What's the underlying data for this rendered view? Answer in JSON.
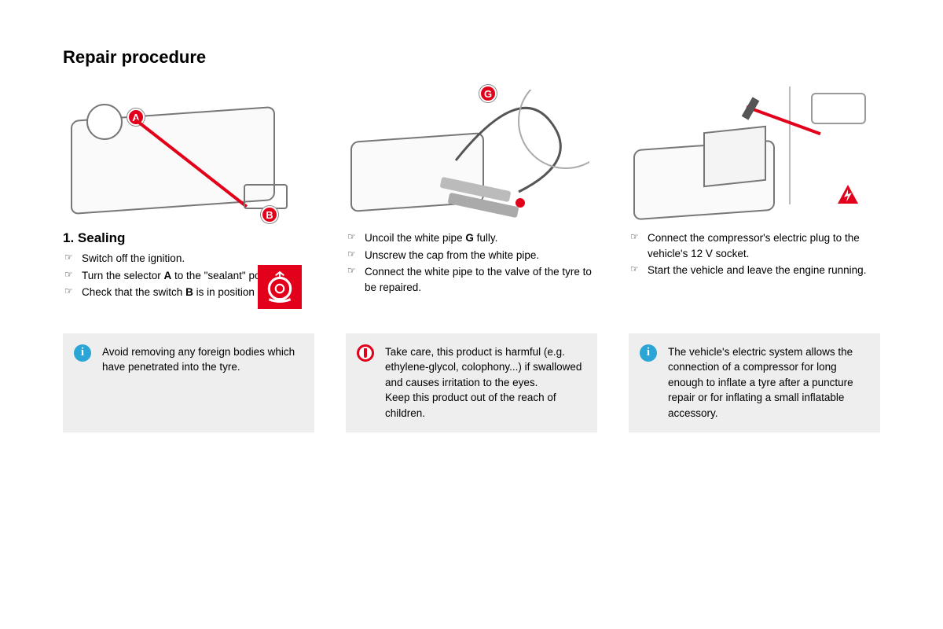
{
  "title": "Repair procedure",
  "col1": {
    "heading": "1. Sealing",
    "steps": [
      "Switch off the ignition.",
      "Turn the selector A to the \"sealant\" position.",
      "Check that the switch B is in position \"O\"."
    ],
    "markers": {
      "a": "A",
      "b": "B"
    }
  },
  "col2": {
    "steps": [
      "Uncoil the white pipe G fully.",
      "Unscrew the cap from the white pipe.",
      "Connect the white pipe to the valve of the tyre to be repaired."
    ],
    "markers": {
      "g": "G"
    }
  },
  "col3": {
    "steps": [
      "Connect the compressor's electric plug to the vehicle's 12 V socket.",
      "Start the vehicle and leave the engine running."
    ]
  },
  "callouts": {
    "c1": "Avoid removing any foreign bodies which have penetrated into the tyre.",
    "c2": "Take care, this product is harmful (e.g. ethylene-glycol, colophony...) if swallowed and causes irritation to the eyes.\nKeep this product out of the reach of children.",
    "c3": "The vehicle's electric system allows the connection of a compressor for long enough to inflate a tyre after a puncture repair or for inflating a small inflatable accessory."
  },
  "colors": {
    "accent_red": "#e2001a",
    "info_blue": "#2ba5d6",
    "callout_bg": "#eeeeee",
    "outline_grey": "#777777"
  },
  "icons": {
    "info": "info-icon",
    "warn": "warn-icon",
    "sealant": "sealant-tire-icon"
  }
}
